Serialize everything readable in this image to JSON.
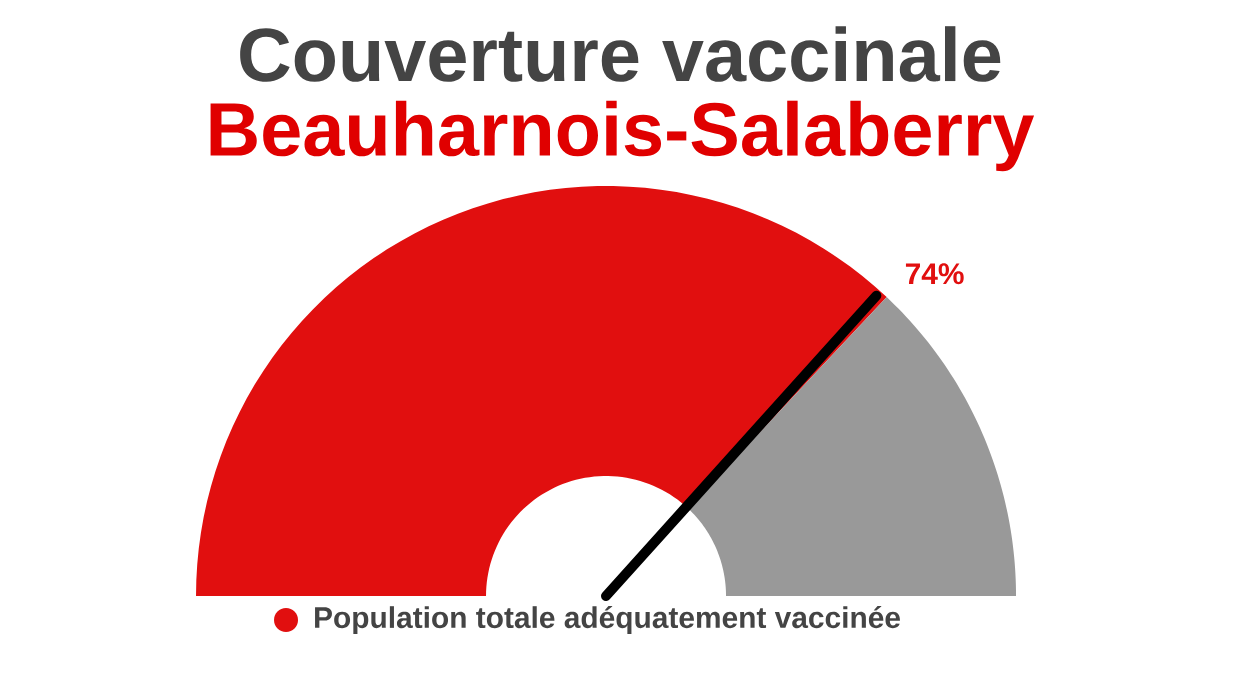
{
  "chart_data": {
    "type": "donut",
    "title": "Couverture vaccinale",
    "subtitle": "Beauharnois-Salaberry",
    "categories": [
      "Population totale adéquatement vaccinée",
      null
    ],
    "values": [
      74,
      26
    ],
    "colors": [
      "#e10f0f",
      "#999999"
    ],
    "value_labels": [
      "74%",
      null
    ],
    "needle": "Population totale adéquatement vaccinée",
    "legend": "bottom"
  }
}
